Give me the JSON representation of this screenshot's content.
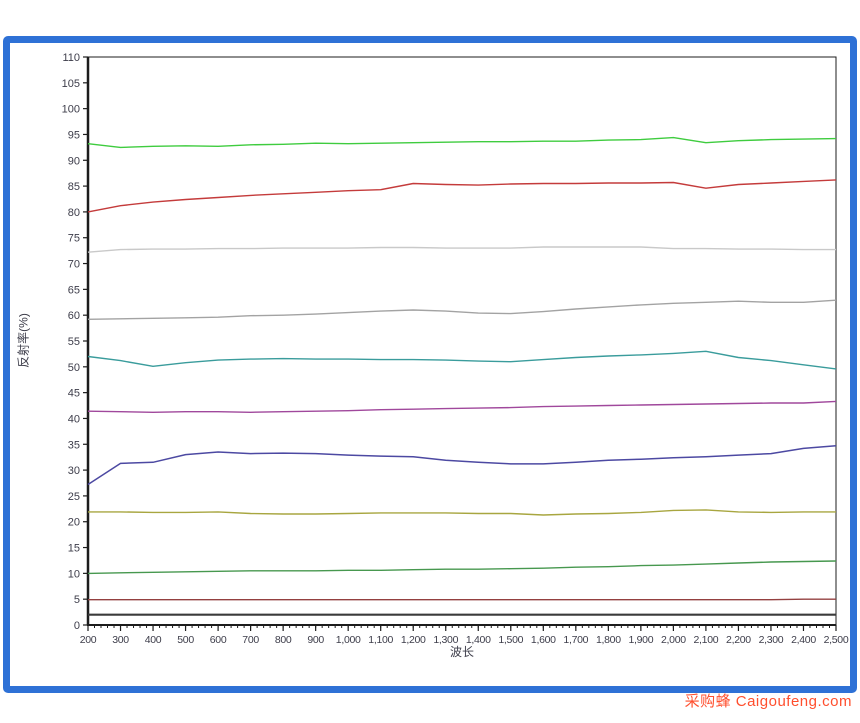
{
  "frame": {
    "border_color": "#2e71d6",
    "background": "#ffffff"
  },
  "watermark": {
    "text": "采购蜂 Caigoufeng.com",
    "color": "#ff4f2e"
  },
  "chart_data": {
    "type": "line",
    "title": "",
    "xlabel": "波长",
    "ylabel": "反射率(%)",
    "xlim": [
      200,
      2500
    ],
    "ylim": [
      0,
      110
    ],
    "x_tick_step": 100,
    "x_minor_tick_step": 20,
    "y_tick_step": 5,
    "grid": false,
    "legend_position": "none",
    "axis_color": "#1c1c1c",
    "tick_label_color": "#3d3d4a",
    "x": [
      200,
      300,
      400,
      500,
      600,
      700,
      800,
      900,
      1000,
      1100,
      1200,
      1300,
      1400,
      1500,
      1600,
      1700,
      1800,
      1900,
      2000,
      2100,
      2200,
      2300,
      2400,
      2500
    ],
    "series": [
      {
        "name": "line-bright-green",
        "color": "#3fcc3f",
        "width": 1.4,
        "values": [
          93.2,
          92.5,
          92.7,
          92.8,
          92.7,
          93.0,
          93.1,
          93.3,
          93.2,
          93.3,
          93.4,
          93.5,
          93.6,
          93.6,
          93.7,
          93.7,
          93.9,
          94.0,
          94.4,
          93.4,
          93.8,
          94.0,
          94.1,
          94.2
        ]
      },
      {
        "name": "line-red",
        "color": "#c43b3b",
        "width": 1.4,
        "values": [
          80.0,
          81.2,
          81.9,
          82.4,
          82.8,
          83.2,
          83.5,
          83.8,
          84.1,
          84.3,
          85.5,
          85.3,
          85.2,
          85.4,
          85.5,
          85.5,
          85.6,
          85.6,
          85.7,
          84.6,
          85.3,
          85.6,
          85.9,
          86.2
        ]
      },
      {
        "name": "line-silver",
        "color": "#c9c9c9",
        "width": 1.4,
        "values": [
          72.2,
          72.7,
          72.8,
          72.8,
          72.9,
          72.9,
          73.0,
          73.0,
          73.0,
          73.1,
          73.1,
          73.0,
          73.0,
          73.0,
          73.2,
          73.2,
          73.2,
          73.2,
          72.9,
          72.9,
          72.8,
          72.8,
          72.7,
          72.7
        ]
      },
      {
        "name": "line-gray",
        "color": "#a3a3a3",
        "width": 1.4,
        "values": [
          59.2,
          59.3,
          59.4,
          59.5,
          59.6,
          59.9,
          60.0,
          60.2,
          60.5,
          60.8,
          61.0,
          60.8,
          60.4,
          60.3,
          60.7,
          61.2,
          61.6,
          62.0,
          62.3,
          62.5,
          62.7,
          62.5,
          62.5,
          62.9
        ]
      },
      {
        "name": "line-teal",
        "color": "#3a9c9c",
        "width": 1.4,
        "values": [
          52.0,
          51.2,
          50.1,
          50.8,
          51.3,
          51.5,
          51.6,
          51.5,
          51.5,
          51.4,
          51.4,
          51.3,
          51.1,
          51.0,
          51.4,
          51.8,
          52.1,
          52.3,
          52.6,
          53.0,
          51.8,
          51.2,
          50.4,
          49.6
        ]
      },
      {
        "name": "line-purple",
        "color": "#a0489c",
        "width": 1.4,
        "values": [
          41.4,
          41.3,
          41.2,
          41.3,
          41.3,
          41.2,
          41.3,
          41.4,
          41.5,
          41.7,
          41.8,
          41.9,
          42.0,
          42.1,
          42.3,
          42.4,
          42.5,
          42.6,
          42.7,
          42.8,
          42.9,
          43.0,
          43.0,
          43.3
        ]
      },
      {
        "name": "line-navy",
        "color": "#4c49a2",
        "width": 1.5,
        "values": [
          27.2,
          31.3,
          31.5,
          33.0,
          33.5,
          33.2,
          33.3,
          33.2,
          32.9,
          32.7,
          32.6,
          31.9,
          31.5,
          31.2,
          31.2,
          31.5,
          31.9,
          32.1,
          32.4,
          32.6,
          32.9,
          33.2,
          34.2,
          34.7
        ]
      },
      {
        "name": "line-olive",
        "color": "#a8a640",
        "width": 1.4,
        "values": [
          21.9,
          21.9,
          21.8,
          21.8,
          21.9,
          21.6,
          21.5,
          21.5,
          21.6,
          21.7,
          21.7,
          21.7,
          21.6,
          21.6,
          21.3,
          21.5,
          21.6,
          21.8,
          22.2,
          22.3,
          21.9,
          21.8,
          21.9,
          21.9
        ]
      },
      {
        "name": "line-green",
        "color": "#47984f",
        "width": 1.4,
        "values": [
          10.0,
          10.1,
          10.2,
          10.3,
          10.4,
          10.5,
          10.5,
          10.5,
          10.6,
          10.6,
          10.7,
          10.8,
          10.8,
          10.9,
          11.0,
          11.2,
          11.3,
          11.5,
          11.6,
          11.8,
          12.0,
          12.2,
          12.3,
          12.4
        ]
      },
      {
        "name": "line-dark-red",
        "color": "#944040",
        "width": 1.3,
        "values": [
          4.9,
          4.9,
          4.9,
          4.9,
          4.9,
          4.9,
          4.9,
          4.9,
          4.9,
          4.9,
          4.9,
          4.9,
          4.9,
          4.9,
          4.9,
          4.9,
          4.9,
          4.9,
          4.9,
          4.9,
          4.9,
          4.9,
          5.0,
          5.0
        ]
      },
      {
        "name": "line-black",
        "color": "#3b3b3b",
        "width": 2.2,
        "values": [
          2.0,
          2.0,
          2.0,
          2.0,
          2.0,
          2.0,
          2.0,
          2.0,
          2.0,
          2.0,
          2.0,
          2.0,
          2.0,
          2.0,
          2.0,
          2.0,
          2.0,
          2.0,
          2.0,
          2.0,
          2.0,
          2.0,
          2.0,
          2.0
        ]
      }
    ]
  }
}
